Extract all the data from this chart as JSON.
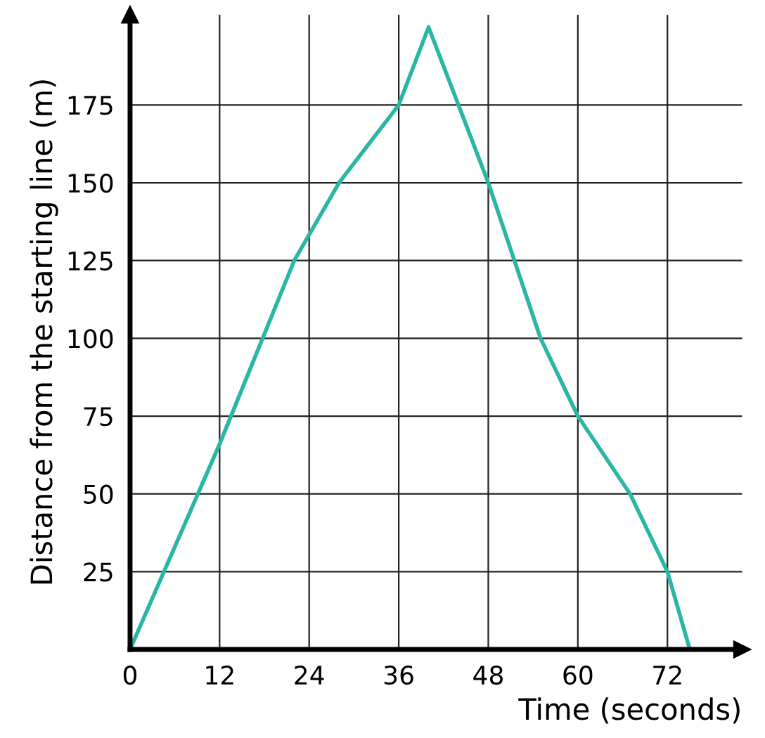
{
  "chart_data": {
    "type": "line",
    "xlabel": "Time (seconds)",
    "ylabel": "Distance from the starting line (m)",
    "x": [
      0,
      12,
      22,
      28,
      36,
      40,
      44,
      48,
      55,
      60,
      67,
      72,
      75
    ],
    "series": [
      {
        "color": "#2ab5a5",
        "values": [
          0,
          66,
          125,
          150,
          175,
          200,
          175,
          150,
          100,
          75,
          50,
          25,
          0
        ]
      }
    ],
    "xlim": [
      0,
      82
    ],
    "ylim": [
      0,
      204
    ],
    "xticks": [
      0,
      12,
      24,
      36,
      48,
      60,
      72
    ],
    "yticks": [
      25,
      50,
      75,
      100,
      125,
      150,
      175
    ],
    "grid": true,
    "legend": false,
    "marker": "none",
    "line_style": "solid"
  }
}
